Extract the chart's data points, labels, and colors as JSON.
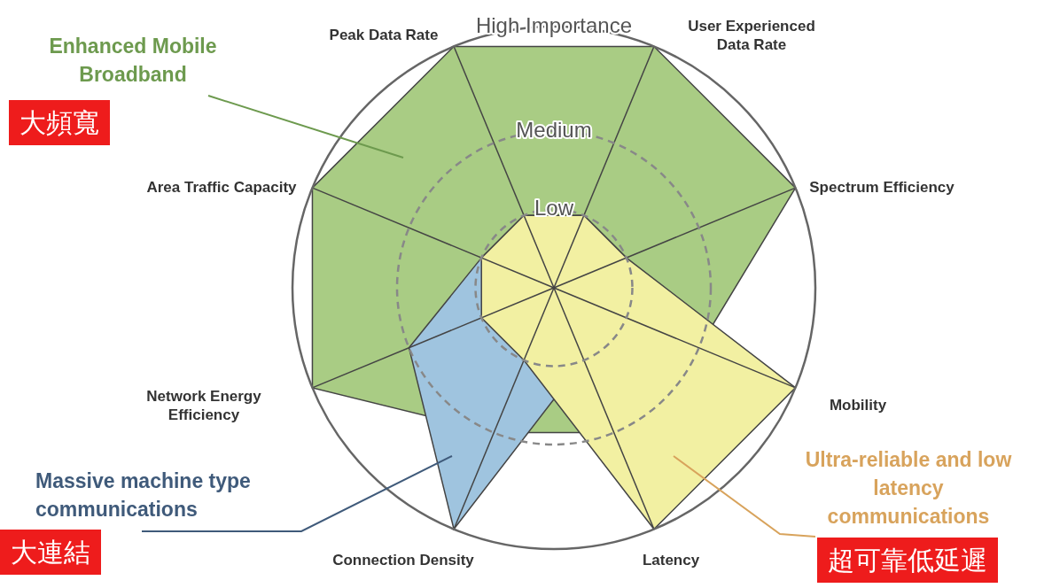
{
  "chart_data": {
    "type": "radar",
    "grid": true,
    "legend": false,
    "marker": "none",
    "ylim": [
      0,
      1
    ],
    "yticks": [
      {
        "value": 0.3,
        "label": "Low"
      },
      {
        "value": 0.6,
        "label": "Medium"
      },
      {
        "value": 1,
        "label": "High Importance"
      }
    ],
    "categories": [
      "Peak Data Rate",
      "User Experienced Data Rate",
      "Spectrum Efficiency",
      "Mobility",
      "Latency",
      "Connection Density",
      "Network Energy Efficiency",
      "Area Traffic Capacity"
    ],
    "series": [
      {
        "name": "Enhanced Mobile Broadband",
        "color": "#a9cc84",
        "values": [
          1,
          1,
          1,
          0.6,
          0.6,
          0.6,
          1,
          1
        ]
      },
      {
        "name": "Massive machine type communications",
        "color": "#9fc4df",
        "values": [
          0.3,
          0.3,
          0.3,
          0.3,
          0.3,
          1,
          0.6,
          0.3
        ]
      },
      {
        "name": "Ultra-reliable and low latency communications",
        "color": "#f2f0a2",
        "values": [
          0.3,
          0.3,
          0.3,
          1,
          1,
          0.3,
          0.3,
          0.3
        ]
      }
    ],
    "annotations": [
      "大頻寬",
      "大連結",
      "超可靠低延遲"
    ]
  }
}
